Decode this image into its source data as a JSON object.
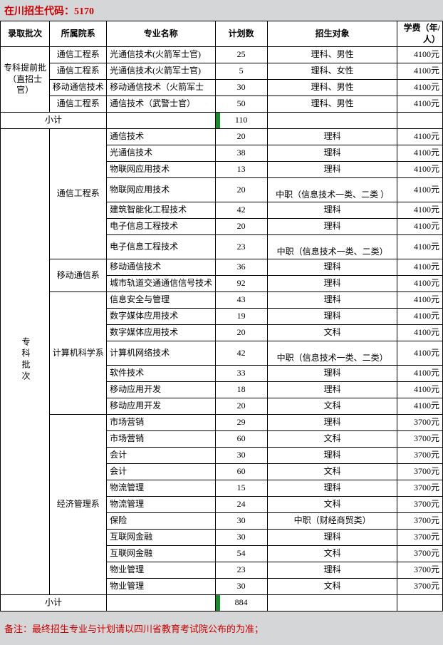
{
  "header": "在川招生代码：5170",
  "columns": {
    "batch": "录取批次",
    "dept": "所属院系",
    "major": "专业名称",
    "plan": "计划数",
    "target": "招生对象",
    "fee": "学费（年/人）"
  },
  "batch1": {
    "label": "专科提前批（直招士官）",
    "rows": [
      {
        "dept": "通信工程系",
        "major": "光通信技术(火箭军士官)",
        "plan": "25",
        "target": "理科、男性",
        "fee": "4100元"
      },
      {
        "dept": "通信工程系",
        "major": "光通信技术(火箭军士官)",
        "plan": "5",
        "target": "理科、女性",
        "fee": "4100元"
      },
      {
        "dept": "移动通信技术",
        "major": "移动通信技术（火箭军士",
        "plan": "30",
        "target": "理科、男性",
        "fee": "4100元"
      },
      {
        "dept": "通信工程系",
        "major": "通信技术（武警士官）",
        "plan": "50",
        "target": "理科、男性",
        "fee": "4100元"
      }
    ],
    "subtotal": {
      "label": "小计",
      "plan": "110"
    }
  },
  "batch2": {
    "label": "专科批次",
    "groups": [
      {
        "dept": "通信工程系",
        "rows": [
          {
            "major": "通信技术",
            "plan": "20",
            "target": "理科",
            "fee": "4100元",
            "tall": false
          },
          {
            "major": "光通信技术",
            "plan": "38",
            "target": "理科",
            "fee": "4100元",
            "tall": false
          },
          {
            "major": "物联网应用技术",
            "plan": "13",
            "target": "理科",
            "fee": "4100元",
            "tall": false
          },
          {
            "major": "物联网应用技术",
            "plan": "20",
            "target": "中职（信息技术一类、二类 ）",
            "fee": "4100元",
            "tall": true
          },
          {
            "major": "建筑智能化工程技术",
            "plan": "42",
            "target": "理科",
            "fee": "4100元",
            "tall": false
          },
          {
            "major": "电子信息工程技术",
            "plan": "20",
            "target": "理科",
            "fee": "4100元",
            "tall": false
          },
          {
            "major": "电子信息工程技术",
            "plan": "23",
            "target": "中职（信息技术一类、二类）",
            "fee": "4100元",
            "tall": true
          }
        ]
      },
      {
        "dept": "移动通信系",
        "rows": [
          {
            "major": "移动通信技术",
            "plan": "36",
            "target": "理科",
            "fee": "4100元",
            "tall": false
          },
          {
            "major": "城市轨道交通通信信号技术",
            "plan": "92",
            "target": "理科",
            "fee": "4100元",
            "tall": false
          }
        ]
      },
      {
        "dept": "计算机科学系",
        "rows": [
          {
            "major": "信息安全与管理",
            "plan": "43",
            "target": "理科",
            "fee": "4100元",
            "tall": false
          },
          {
            "major": "数字媒体应用技术",
            "plan": "19",
            "target": "理科",
            "fee": "4100元",
            "tall": false
          },
          {
            "major": "数字媒体应用技术",
            "plan": "20",
            "target": "文科",
            "fee": "4100元",
            "tall": false
          },
          {
            "major": "计算机网络技术",
            "plan": "42",
            "target": "中职（信息技术一类、二类）",
            "fee": "4100元",
            "tall": true
          },
          {
            "major": "软件技术",
            "plan": "33",
            "target": "理科",
            "fee": "4100元",
            "tall": false
          },
          {
            "major": "移动应用开发",
            "plan": "18",
            "target": "理科",
            "fee": "4100元",
            "tall": false
          },
          {
            "major": "移动应用开发",
            "plan": "20",
            "target": "文科",
            "fee": "4100元",
            "tall": false
          }
        ]
      },
      {
        "dept": "经济管理系",
        "rows": [
          {
            "major": "市场营销",
            "plan": "29",
            "target": "理科",
            "fee": "3700元",
            "tall": false
          },
          {
            "major": "市场营销",
            "plan": "60",
            "target": "文科",
            "fee": "3700元",
            "tall": false
          },
          {
            "major": "会计",
            "plan": "30",
            "target": "理科",
            "fee": "3700元",
            "tall": false
          },
          {
            "major": "会计",
            "plan": "60",
            "target": "文科",
            "fee": "3700元",
            "tall": false
          },
          {
            "major": "物流管理",
            "plan": "15",
            "target": "理科",
            "fee": "3700元",
            "tall": false
          },
          {
            "major": "物流管理",
            "plan": "24",
            "target": "文科",
            "fee": "3700元",
            "tall": false
          },
          {
            "major": "保险",
            "plan": "30",
            "target": "中职（财经商贸类）",
            "fee": "3700元",
            "tall": false
          },
          {
            "major": "互联网金融",
            "plan": "30",
            "target": "理科",
            "fee": "3700元",
            "tall": false
          },
          {
            "major": "互联网金融",
            "plan": "54",
            "target": "文科",
            "fee": "3700元",
            "tall": false
          },
          {
            "major": "物业管理",
            "plan": "23",
            "target": "理科",
            "fee": "3700元",
            "tall": false
          },
          {
            "major": "物业管理",
            "plan": "30",
            "target": "文科",
            "fee": "3700元",
            "tall": false
          }
        ]
      }
    ],
    "subtotal": {
      "label": "小计",
      "plan": "884"
    }
  },
  "note": "备注：最终招生专业与计划请以四川省教育考试院公布的为准；"
}
